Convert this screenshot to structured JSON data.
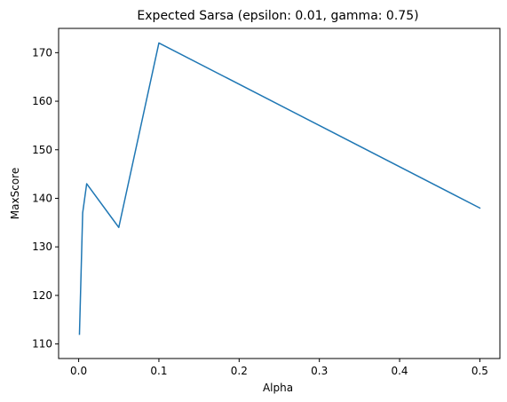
{
  "chart_data": {
    "type": "line",
    "title": "Expected Sarsa (epsilon: 0.01, gamma: 0.75)",
    "xlabel": "Alpha",
    "ylabel": "MaxScore",
    "xlim": [
      -0.025,
      0.525
    ],
    "ylim": [
      107,
      175
    ],
    "xticks": [
      0.0,
      0.1,
      0.2,
      0.3,
      0.4,
      0.5
    ],
    "xtick_labels": [
      "0.0",
      "0.1",
      "0.2",
      "0.3",
      "0.4",
      "0.5"
    ],
    "yticks": [
      110,
      120,
      130,
      140,
      150,
      160,
      170
    ],
    "ytick_labels": [
      "110",
      "120",
      "130",
      "140",
      "150",
      "160",
      "170"
    ],
    "grid": false,
    "series": [
      {
        "color": "#1f77b4",
        "x": [
          0.001,
          0.005,
          0.01,
          0.05,
          0.1,
          0.5
        ],
        "y": [
          112,
          137,
          143,
          134,
          172,
          138
        ]
      }
    ]
  }
}
